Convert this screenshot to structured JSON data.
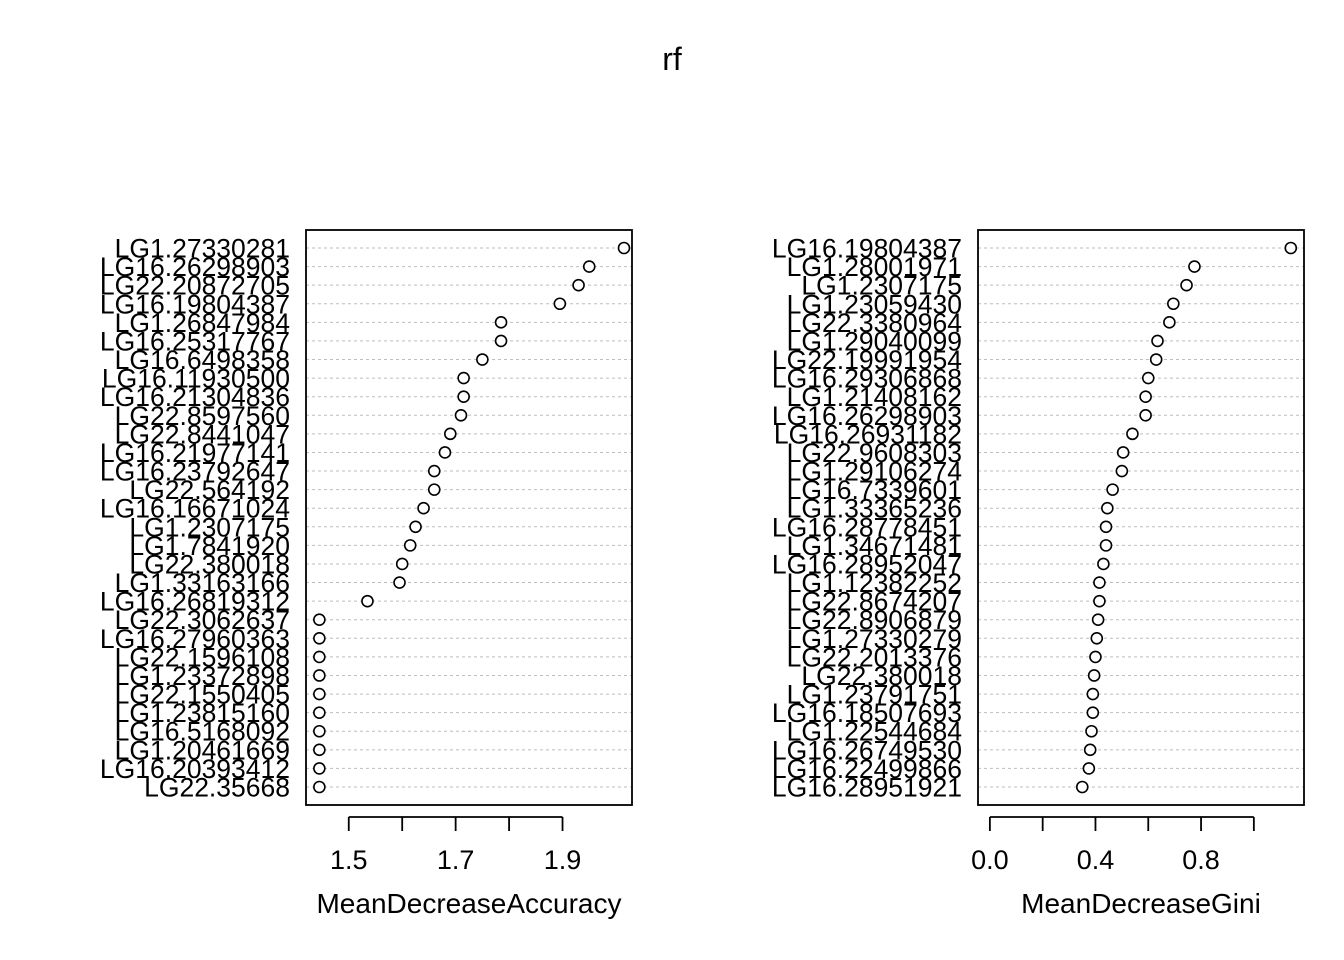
{
  "title": "rf",
  "chart_data": [
    {
      "type": "scatter",
      "xlabel": "MeanDecreaseAccuracy",
      "xticks": [
        "1.5",
        "1.7",
        "1.9"
      ],
      "xtick_values": [
        1.5,
        1.6,
        1.7,
        1.8,
        1.9
      ],
      "labeled_tick_values": [
        1.5,
        1.7,
        1.9
      ],
      "xlim": [
        1.42,
        2.03
      ],
      "grid": true,
      "labels": [
        "LG1.27330281",
        "LG16.26298903",
        "LG22.20872705",
        "LG16.19804387",
        "LG1.26847984",
        "LG16.25317767",
        "LG16.6498358",
        "LG16.11930500",
        "LG16.21304836",
        "LG22.8597560",
        "LG22.8441047",
        "LG16.21977141",
        "LG16.23792647",
        "LG22.564192",
        "LG16.16671024",
        "LG1.2307175",
        "LG1.7841920",
        "LG22.380018",
        "LG1.33163166",
        "LG16.26819312",
        "LG22.3062637",
        "LG16.27960363",
        "LG22.1596108",
        "LG1.23372898",
        "LG22.1550405",
        "LG1.23815160",
        "LG16.5168092",
        "LG1.20461669",
        "LG16.20393412",
        "LG22.35668"
      ],
      "values": [
        2.015,
        1.95,
        1.93,
        1.895,
        1.785,
        1.785,
        1.75,
        1.715,
        1.715,
        1.71,
        1.69,
        1.68,
        1.66,
        1.66,
        1.64,
        1.625,
        1.615,
        1.6,
        1.595,
        1.535,
        1.445,
        1.445,
        1.445,
        1.445,
        1.445,
        1.445,
        1.445,
        1.445,
        1.445,
        1.445
      ]
    },
    {
      "type": "scatter",
      "xlabel": "MeanDecreaseGini",
      "xticks": [
        "0.0",
        "0.4",
        "0.8"
      ],
      "xtick_values": [
        0.0,
        0.2,
        0.4,
        0.6,
        0.8,
        1.0
      ],
      "labeled_tick_values": [
        0.0,
        0.4,
        0.8
      ],
      "xlim": [
        -0.045,
        1.19
      ],
      "grid": true,
      "labels": [
        "LG16.19804387",
        "LG1.28001971",
        "LG1.2307175",
        "LG1.23059430",
        "LG22.3380964",
        "LG1.29040099",
        "LG22.19991954",
        "LG16.29306868",
        "LG1.21408162",
        "LG16.26298903",
        "LG16.26931182",
        "LG22.9608303",
        "LG1.29106274",
        "LG16.7339601",
        "LG1.33365236",
        "LG16.28778451",
        "LG1.34671481",
        "LG16.28952047",
        "LG1.12382252",
        "LG22.8674207",
        "LG22.8906879",
        "LG1.27330279",
        "LG22.2013376",
        "LG22.380018",
        "LG1.23791751",
        "LG16.18507693",
        "LG1.22544684",
        "LG16.26749530",
        "LG16.22499866",
        "LG16.28951921"
      ],
      "values": [
        1.14,
        0.775,
        0.745,
        0.695,
        0.68,
        0.635,
        0.63,
        0.6,
        0.59,
        0.59,
        0.54,
        0.505,
        0.5,
        0.465,
        0.445,
        0.44,
        0.44,
        0.43,
        0.415,
        0.415,
        0.41,
        0.405,
        0.4,
        0.395,
        0.39,
        0.39,
        0.385,
        0.38,
        0.375,
        0.35
      ]
    }
  ]
}
